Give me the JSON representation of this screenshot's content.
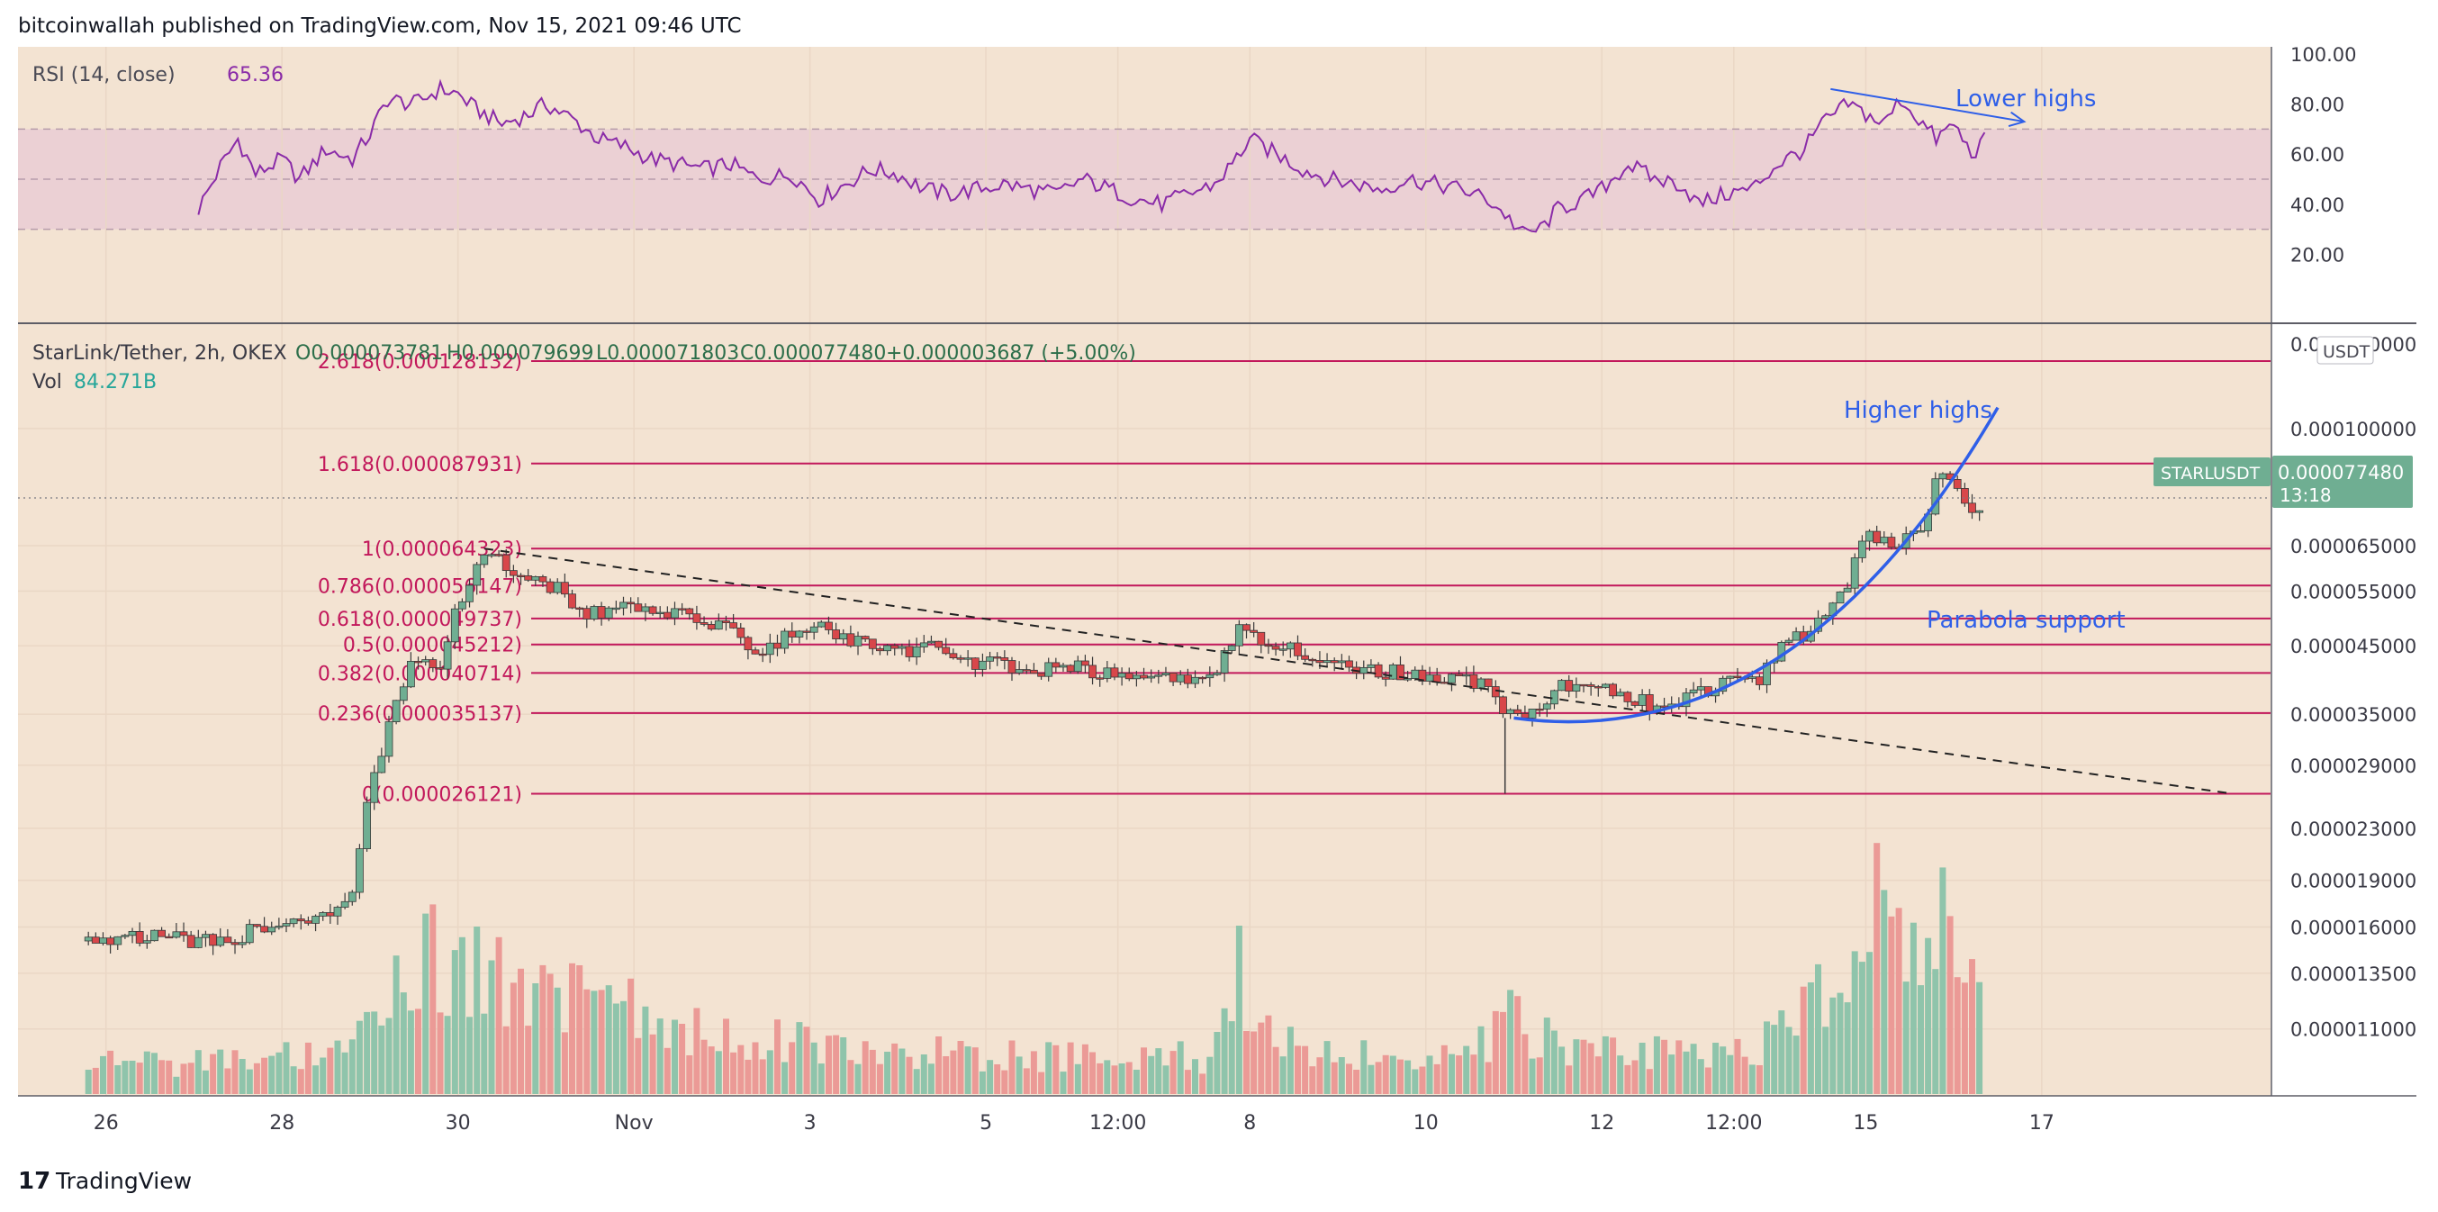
{
  "header": {
    "publisher_line": "bitcoinwallah published on TradingView.com, Nov 15, 2021 09:46 UTC"
  },
  "footer": {
    "brand": "TradingView",
    "brand_mark": "17"
  },
  "colors": {
    "background": "#f3e3d2",
    "rsi_band": "#e8c9d4",
    "grid": "#ead7c5",
    "up_candle": "#6fae92",
    "down_candle": "#d8474a",
    "up_volume": "#8fc4ab",
    "down_volume": "#eb9a96",
    "fib_line": "#c2185b",
    "rsi_line": "#8a2ba8",
    "annotation": "#2f5fe8",
    "last_price_badge": "#6fae92"
  },
  "rsi_panel": {
    "label": "RSI (14, close)",
    "value": "65.36",
    "axis_ticks": [
      "100.00",
      "80.00",
      "60.00",
      "40.00",
      "20.00"
    ],
    "band": [
      30,
      70
    ],
    "midline": 50,
    "annotation": "Lower highs"
  },
  "price_panel": {
    "legend": "StarLink/Tether, 2h, OKEX",
    "ohlc": {
      "open": "O0.000073781",
      "high": "H0.000079699",
      "low": "L0.000071803",
      "close": "C0.000077480",
      "change": "+0.000003687 (+5.00%)"
    },
    "volume_label": "Vol",
    "volume_value": "84.271B",
    "currency": "USDT",
    "symbol_badge": "STARLUSDT",
    "last_price": "0.000077480",
    "countdown": "13:18",
    "annotations": {
      "higher_highs": "Higher highs",
      "parabola": "Parabola support"
    }
  },
  "chart_data": {
    "type": "candlestick",
    "symbol": "STARLUSDT",
    "interval": "2h",
    "y_scale": "log",
    "ylim": [
      9.5e-06,
      0.000142
    ],
    "price_ticks": [
      "0.000100000",
      "0.000065000",
      "0.000055000",
      "0.000045000",
      "0.000035000",
      "0.000029000",
      "0.000023000",
      "0.000019000",
      "0.000016000",
      "0.000013500",
      "0.000011000"
    ],
    "price_tick_values": [
      0.0001,
      6.5e-05,
      5.5e-05,
      4.5e-05,
      3.5e-05,
      2.9e-05,
      2.3e-05,
      1.9e-05,
      1.6e-05,
      1.35e-05,
      1.1e-05
    ],
    "top_tick_partial": "0.000130000",
    "x_ticks": [
      "26",
      "28",
      "30",
      "Nov",
      "3",
      "5",
      "12:00",
      "8",
      "10",
      "12",
      "12:00",
      "15",
      "17"
    ],
    "x_tick_values": [
      1,
      3,
      5,
      7,
      9,
      11,
      12.5,
      14,
      16,
      18,
      19.5,
      21,
      23
    ],
    "x_domain": [
      0,
      25.6
    ],
    "fib_levels": [
      {
        "label": "2.618(0.000128132)",
        "value": 0.000128132
      },
      {
        "label": "1.618(0.000087931)",
        "value": 8.7931e-05
      },
      {
        "label": "1(0.000064323)",
        "value": 6.4323e-05
      },
      {
        "label": "0.786(0.000056147)",
        "value": 5.6147e-05
      },
      {
        "label": "0.618(0.000049737)",
        "value": 4.9737e-05
      },
      {
        "label": "0.5(0.000045212)",
        "value": 4.5212e-05
      },
      {
        "label": "0.382(0.000040714)",
        "value": 4.0714e-05
      },
      {
        "label": "0.236(0.000035137)",
        "value": 3.5137e-05
      },
      {
        "label": "0(0.000026121)",
        "value": 2.6121e-05
      }
    ],
    "close_path": [
      [
        0.8,
        1.52e-05
      ],
      [
        1.2,
        1.56e-05
      ],
      [
        1.6,
        1.54e-05
      ],
      [
        2.0,
        1.52e-05
      ],
      [
        2.4,
        1.5e-05
      ],
      [
        2.8,
        1.62e-05
      ],
      [
        3.2,
        1.64e-05
      ],
      [
        3.6,
        1.66e-05
      ],
      [
        3.8,
        1.8e-05
      ],
      [
        4.0,
        2.6e-05
      ],
      [
        4.2,
        3.3e-05
      ],
      [
        4.5,
        4.4e-05
      ],
      [
        4.8,
        4.2e-05
      ],
      [
        5.0,
        5.2e-05
      ],
      [
        5.25,
        6.2e-05
      ],
      [
        5.5,
        6.1e-05
      ],
      [
        5.8,
        5.8e-05
      ],
      [
        6.1,
        5.6e-05
      ],
      [
        6.4,
        5e-05
      ],
      [
        6.8,
        5.2e-05
      ],
      [
        7.2,
        5.1e-05
      ],
      [
        7.6,
        5e-05
      ],
      [
        8.0,
        4.9e-05
      ],
      [
        8.4,
        4.4e-05
      ],
      [
        8.8,
        4.7e-05
      ],
      [
        9.2,
        4.8e-05
      ],
      [
        9.6,
        4.5e-05
      ],
      [
        10.0,
        4.4e-05
      ],
      [
        10.4,
        4.45e-05
      ],
      [
        10.8,
        4.25e-05
      ],
      [
        11.2,
        4.2e-05
      ],
      [
        11.6,
        4.1e-05
      ],
      [
        12.0,
        4.15e-05
      ],
      [
        12.4,
        4.05e-05
      ],
      [
        12.8,
        4e-05
      ],
      [
        13.2,
        3.95e-05
      ],
      [
        13.6,
        4.1e-05
      ],
      [
        13.9,
        4.8e-05
      ],
      [
        14.2,
        4.6e-05
      ],
      [
        14.6,
        4.4e-05
      ],
      [
        15.0,
        4.2e-05
      ],
      [
        15.4,
        4.1e-05
      ],
      [
        15.8,
        4.05e-05
      ],
      [
        16.2,
        4e-05
      ],
      [
        16.6,
        3.95e-05
      ],
      [
        16.8,
        3.7e-05
      ],
      [
        16.9,
        3.45e-05
      ],
      [
        17.2,
        3.55e-05
      ],
      [
        17.6,
        3.9e-05
      ],
      [
        17.9,
        4e-05
      ],
      [
        18.2,
        3.8e-05
      ],
      [
        18.6,
        3.6e-05
      ],
      [
        19.0,
        3.75e-05
      ],
      [
        19.4,
        3.9e-05
      ],
      [
        19.8,
        4e-05
      ],
      [
        20.0,
        4.4e-05
      ],
      [
        20.3,
        4.7e-05
      ],
      [
        20.5,
        4.9e-05
      ],
      [
        20.8,
        5.6e-05
      ],
      [
        20.9,
        6.4e-05
      ],
      [
        21.1,
        6.8e-05
      ],
      [
        21.3,
        6.4e-05
      ],
      [
        21.5,
        7e-05
      ],
      [
        21.7,
        7e-05
      ],
      [
        21.8,
        8.3e-05
      ],
      [
        22.0,
        8.2e-05
      ],
      [
        22.2,
        7.4e-05
      ],
      [
        22.35,
        7.75e-05
      ]
    ],
    "volume_path": [
      [
        0.8,
        0.1
      ],
      [
        2.0,
        0.1
      ],
      [
        3.0,
        0.12
      ],
      [
        3.8,
        0.15
      ],
      [
        4.2,
        0.35
      ],
      [
        4.6,
        0.45
      ],
      [
        5.0,
        0.4
      ],
      [
        5.5,
        0.35
      ],
      [
        6.5,
        0.3
      ],
      [
        7.5,
        0.22
      ],
      [
        8.5,
        0.18
      ],
      [
        9.5,
        0.16
      ],
      [
        10.5,
        0.14
      ],
      [
        11.5,
        0.12
      ],
      [
        12.5,
        0.12
      ],
      [
        13.5,
        0.12
      ],
      [
        13.9,
        0.35
      ],
      [
        14.5,
        0.14
      ],
      [
        15.5,
        0.12
      ],
      [
        16.5,
        0.12
      ],
      [
        16.9,
        0.25
      ],
      [
        17.5,
        0.16
      ],
      [
        18.5,
        0.14
      ],
      [
        19.5,
        0.12
      ],
      [
        20.2,
        0.22
      ],
      [
        20.9,
        0.45
      ],
      [
        21.3,
        0.55
      ],
      [
        21.8,
        0.48
      ],
      [
        22.35,
        0.3
      ]
    ],
    "volume_spikes": [
      {
        "x": 13.9,
        "v": 0.55
      },
      {
        "x": 17.0,
        "v": 0.34
      },
      {
        "x": 21.1,
        "v": 0.82
      },
      {
        "x": 21.3,
        "v": 0.58
      },
      {
        "x": 21.9,
        "v": 0.74
      }
    ],
    "rsi_path": [
      [
        2.05,
        38
      ],
      [
        2.3,
        55
      ],
      [
        2.5,
        66
      ],
      [
        2.7,
        52
      ],
      [
        3.0,
        58
      ],
      [
        3.2,
        50
      ],
      [
        3.5,
        62
      ],
      [
        3.8,
        58
      ],
      [
        4.0,
        68
      ],
      [
        4.2,
        82
      ],
      [
        4.5,
        80
      ],
      [
        4.8,
        86
      ],
      [
        5.0,
        84
      ],
      [
        5.2,
        78
      ],
      [
        5.5,
        72
      ],
      [
        5.8,
        76
      ],
      [
        6.0,
        80
      ],
      [
        6.3,
        74
      ],
      [
        6.6,
        66
      ],
      [
        6.9,
        63
      ],
      [
        7.2,
        58
      ],
      [
        7.5,
        56
      ],
      [
        7.8,
        54
      ],
      [
        8.1,
        56
      ],
      [
        8.4,
        50
      ],
      [
        8.8,
        52
      ],
      [
        9.1,
        42
      ],
      [
        9.4,
        48
      ],
      [
        9.7,
        54
      ],
      [
        10.0,
        52
      ],
      [
        10.3,
        46
      ],
      [
        10.6,
        44
      ],
      [
        10.9,
        46
      ],
      [
        11.2,
        48
      ],
      [
        11.5,
        46
      ],
      [
        11.8,
        44
      ],
      [
        12.1,
        50
      ],
      [
        12.4,
        46
      ],
      [
        12.7,
        42
      ],
      [
        13.0,
        40
      ],
      [
        13.3,
        44
      ],
      [
        13.6,
        48
      ],
      [
        13.8,
        56
      ],
      [
        14.0,
        66
      ],
      [
        14.3,
        60
      ],
      [
        14.6,
        54
      ],
      [
        14.9,
        50
      ],
      [
        15.2,
        48
      ],
      [
        15.5,
        46
      ],
      [
        15.8,
        50
      ],
      [
        16.1,
        48
      ],
      [
        16.4,
        46
      ],
      [
        16.7,
        42
      ],
      [
        16.9,
        36
      ],
      [
        17.1,
        28
      ],
      [
        17.3,
        30
      ],
      [
        17.5,
        38
      ],
      [
        17.8,
        42
      ],
      [
        18.0,
        46
      ],
      [
        18.3,
        56
      ],
      [
        18.6,
        50
      ],
      [
        18.9,
        48
      ],
      [
        19.1,
        40
      ],
      [
        19.4,
        44
      ],
      [
        19.7,
        46
      ],
      [
        20.0,
        56
      ],
      [
        20.3,
        62
      ],
      [
        20.5,
        72
      ],
      [
        20.8,
        80
      ],
      [
        21.0,
        76
      ],
      [
        21.2,
        72
      ],
      [
        21.4,
        82
      ],
      [
        21.6,
        74
      ],
      [
        21.8,
        66
      ],
      [
        22.0,
        72
      ],
      [
        22.2,
        60
      ],
      [
        22.35,
        65.36
      ]
    ],
    "trendlines": {
      "descending_start": [
        5.3,
        6.4323e-05
      ],
      "descending_end": [
        25.1,
        2.62e-05
      ],
      "parabola_start": [
        17.0,
        3.45e-05
      ],
      "parabola_control": [
        20.2,
        3e-05
      ],
      "parabola_end": [
        22.5,
        0.000108
      ],
      "rsi_arrow": [
        [
          20.6,
          86
        ],
        [
          22.8,
          73
        ]
      ]
    }
  }
}
